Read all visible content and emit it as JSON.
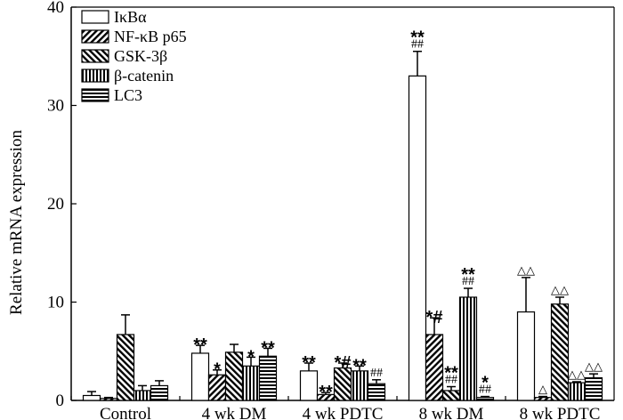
{
  "chart_data": {
    "type": "bar",
    "title": "",
    "xlabel": "",
    "ylabel": "Relative mRNA expression",
    "ylim": [
      0,
      40
    ],
    "yticks": [
      0,
      10,
      20,
      30,
      40
    ],
    "grid": false,
    "legend_position": "top-left",
    "categories": [
      "Control",
      "4 wk DM",
      "4 wk PDTC",
      "8 wk DM",
      "8 wk PDTC"
    ],
    "series": [
      {
        "name": "IκBα",
        "pattern": "white",
        "values": [
          0.5,
          4.8,
          3.0,
          33.0,
          9.0
        ],
        "errors": [
          0.4,
          0.8,
          0.8,
          2.5,
          3.5
        ],
        "annotations": [
          [],
          [
            "**"
          ],
          [
            "**"
          ],
          [
            "**",
            "##"
          ],
          [
            "△△"
          ]
        ]
      },
      {
        "name": "NF-κB p65",
        "pattern": "diag-fwd",
        "values": [
          0.2,
          2.6,
          0.6,
          6.7,
          0.3
        ],
        "errors": [
          0.1,
          0.5,
          0.2,
          1.7,
          0.1
        ],
        "annotations": [
          [],
          [
            "*"
          ],
          [
            "**"
          ],
          [
            "*#"
          ],
          [
            "△"
          ]
        ]
      },
      {
        "name": "GSK-3β",
        "pattern": "diag-back",
        "values": [
          6.7,
          4.9,
          3.3,
          1.0,
          9.8
        ],
        "errors": [
          2.0,
          0.8,
          0.5,
          0.4,
          0.7
        ],
        "annotations": [
          [],
          [],
          [
            "*#"
          ],
          [
            "**",
            "##"
          ],
          [
            "△△"
          ]
        ]
      },
      {
        "name": "β-catenin",
        "pattern": "vertical",
        "values": [
          1.0,
          3.5,
          3.0,
          10.5,
          1.8
        ],
        "errors": [
          0.5,
          0.9,
          0.5,
          0.9,
          0.1
        ],
        "annotations": [
          [],
          [
            "*"
          ],
          [
            "**"
          ],
          [
            "**",
            "##"
          ],
          [
            "△△"
          ]
        ]
      },
      {
        "name": "LC3",
        "pattern": "horizontal",
        "values": [
          1.5,
          4.5,
          1.7,
          0.3,
          2.3
        ],
        "errors": [
          0.5,
          0.8,
          0.4,
          0.1,
          0.4
        ],
        "annotations": [
          [],
          [
            "**"
          ],
          [
            "##"
          ],
          [
            "*",
            "##"
          ],
          [
            "△△"
          ]
        ]
      }
    ]
  }
}
